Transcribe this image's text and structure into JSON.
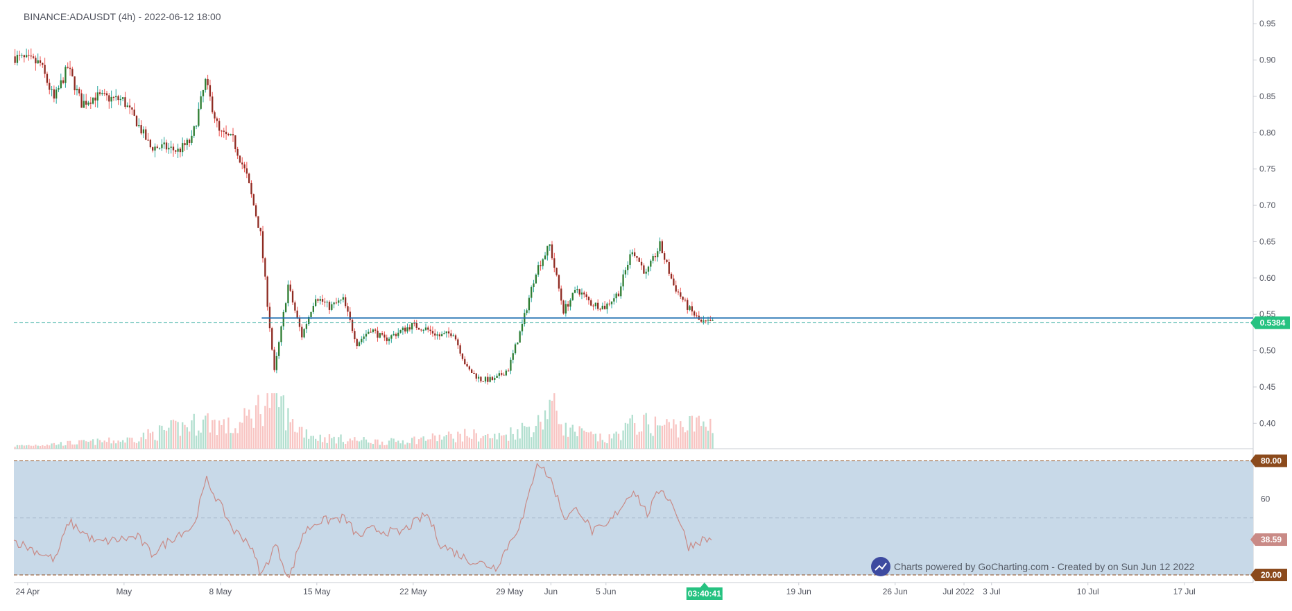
{
  "header": {
    "symbol_title": "BINANCE:ADAUSDT (4h) - 2022-06-12 18:00"
  },
  "colors": {
    "bull": "#26a69a",
    "bull_body": "#2e7d32",
    "bear": "#ef5350",
    "bear_body": "#8e2b22",
    "volume_bull": "#b2dfcf",
    "volume_bear": "#f8c4c2",
    "hline": "#1f6fb2",
    "price_dashed": "#26a69a",
    "price_badge": "#26c281",
    "rsi_band": "#c8d9e8",
    "rsi_line": "#c98a86",
    "rsi_level_line": "#8b4a1c",
    "rsi_level_badge": "#8b4a1c",
    "rsi_value_badge": "#c98a86",
    "time_badge": "#26c281"
  },
  "icons": {
    "brand": "trend-chart-icon"
  },
  "chart_data": {
    "type": "candlestick",
    "symbol": "ADAUSDT",
    "exchange": "BINANCE",
    "interval": "4h",
    "price_axis": {
      "ticks": [
        "0.95",
        "0.90",
        "0.85",
        "0.80",
        "0.75",
        "0.70",
        "0.65",
        "0.60",
        "0.55",
        "0.50",
        "0.45",
        "0.40"
      ],
      "range": [
        0.365,
        0.975
      ]
    },
    "x_axis": {
      "labels": [
        "24 Apr",
        "May",
        "8 May",
        "15 May",
        "22 May",
        "29 May",
        "Jun",
        "5 Jun",
        "19 Jun",
        "26 Jun",
        "Jul 2022",
        "3 Jul",
        "10 Jul",
        "17 Jul"
      ],
      "start": "2022-04-23",
      "end": "2022-07-22"
    },
    "price_path": [
      [
        "2022-04-23",
        0.905
      ],
      [
        "2022-04-25",
        0.895
      ],
      [
        "2022-04-26",
        0.845
      ],
      [
        "2022-04-27",
        0.89
      ],
      [
        "2022-04-28",
        0.84
      ],
      [
        "2022-04-29",
        0.85
      ],
      [
        "2022-05-01",
        0.845
      ],
      [
        "2022-05-02",
        0.815
      ],
      [
        "2022-05-03",
        0.78
      ],
      [
        "2022-05-04",
        0.78
      ],
      [
        "2022-05-05",
        0.775
      ],
      [
        "2022-05-06",
        0.79
      ],
      [
        "2022-05-07",
        0.87
      ],
      [
        "2022-05-08",
        0.8
      ],
      [
        "2022-05-09",
        0.79
      ],
      [
        "2022-05-10",
        0.74
      ],
      [
        "2022-05-11",
        0.66
      ],
      [
        "2022-05-12",
        0.47
      ],
      [
        "2022-05-13",
        0.59
      ],
      [
        "2022-05-14",
        0.52
      ],
      [
        "2022-05-15",
        0.575
      ],
      [
        "2022-05-16",
        0.56
      ],
      [
        "2022-05-17",
        0.57
      ],
      [
        "2022-05-18",
        0.51
      ],
      [
        "2022-05-19",
        0.53
      ],
      [
        "2022-05-20",
        0.515
      ],
      [
        "2022-05-22",
        0.535
      ],
      [
        "2022-05-23",
        0.53
      ],
      [
        "2022-05-24",
        0.52
      ],
      [
        "2022-05-25",
        0.525
      ],
      [
        "2022-05-26",
        0.475
      ],
      [
        "2022-05-27",
        0.46
      ],
      [
        "2022-05-28",
        0.46
      ],
      [
        "2022-05-29",
        0.475
      ],
      [
        "2022-05-30",
        0.535
      ],
      [
        "2022-05-31",
        0.61
      ],
      [
        "2022-06-01",
        0.645
      ],
      [
        "2022-06-02",
        0.555
      ],
      [
        "2022-06-03",
        0.585
      ],
      [
        "2022-06-04",
        0.565
      ],
      [
        "2022-06-05",
        0.56
      ],
      [
        "2022-06-06",
        0.58
      ],
      [
        "2022-06-07",
        0.64
      ],
      [
        "2022-06-08",
        0.605
      ],
      [
        "2022-06-09",
        0.645
      ],
      [
        "2022-06-10",
        0.59
      ],
      [
        "2022-06-11",
        0.56
      ],
      [
        "2022-06-12",
        0.5384
      ]
    ],
    "volume_relative": [
      [
        "2022-04-23",
        0.05
      ],
      [
        "2022-05-01",
        0.15
      ],
      [
        "2022-05-07",
        0.5
      ],
      [
        "2022-05-09",
        0.35
      ],
      [
        "2022-05-11",
        0.8
      ],
      [
        "2022-05-12",
        1.0
      ],
      [
        "2022-05-13",
        0.45
      ],
      [
        "2022-05-15",
        0.2
      ],
      [
        "2022-05-20",
        0.12
      ],
      [
        "2022-05-26",
        0.25
      ],
      [
        "2022-05-28",
        0.2
      ],
      [
        "2022-05-31",
        0.45
      ],
      [
        "2022-06-01",
        0.85
      ],
      [
        "2022-06-02",
        0.35
      ],
      [
        "2022-06-05",
        0.15
      ],
      [
        "2022-06-07",
        0.45
      ],
      [
        "2022-06-10",
        0.4
      ],
      [
        "2022-06-12",
        0.45
      ]
    ],
    "horizontal_line": 0.545,
    "last_price": "0.5384",
    "rsi": {
      "axis_tick": "60",
      "upper": "80.00",
      "lower": "20.00",
      "value": "38.59",
      "range": [
        16,
        86
      ],
      "path": [
        [
          "2022-04-23",
          38
        ],
        [
          "2022-04-26",
          28
        ],
        [
          "2022-04-27",
          48
        ],
        [
          "2022-04-29",
          37
        ],
        [
          "2022-05-02",
          40
        ],
        [
          "2022-05-03",
          31
        ],
        [
          "2022-05-05",
          42
        ],
        [
          "2022-05-06",
          45
        ],
        [
          "2022-05-07",
          70
        ],
        [
          "2022-05-09",
          43
        ],
        [
          "2022-05-10",
          38
        ],
        [
          "2022-05-11",
          20
        ],
        [
          "2022-05-12",
          36
        ],
        [
          "2022-05-13",
          18
        ],
        [
          "2022-05-14",
          42
        ],
        [
          "2022-05-15",
          48
        ],
        [
          "2022-05-17",
          50
        ],
        [
          "2022-05-18",
          40
        ],
        [
          "2022-05-19",
          44
        ],
        [
          "2022-05-21",
          42
        ],
        [
          "2022-05-23",
          52
        ],
        [
          "2022-05-24",
          36
        ],
        [
          "2022-05-26",
          28
        ],
        [
          "2022-05-28",
          24
        ],
        [
          "2022-05-30",
          50
        ],
        [
          "2022-05-31",
          80
        ],
        [
          "2022-06-01",
          70
        ],
        [
          "2022-06-02",
          50
        ],
        [
          "2022-06-03",
          55
        ],
        [
          "2022-06-04",
          43
        ],
        [
          "2022-06-05",
          45
        ],
        [
          "2022-06-07",
          65
        ],
        [
          "2022-06-08",
          52
        ],
        [
          "2022-06-09",
          66
        ],
        [
          "2022-06-10",
          55
        ],
        [
          "2022-06-11",
          35
        ],
        [
          "2022-06-12",
          38.59
        ]
      ]
    }
  },
  "footer": {
    "credit": "Charts powered by GoCharting.com - Created by  on Sun Jun 12 2022",
    "time_badge": "03:40:41"
  }
}
